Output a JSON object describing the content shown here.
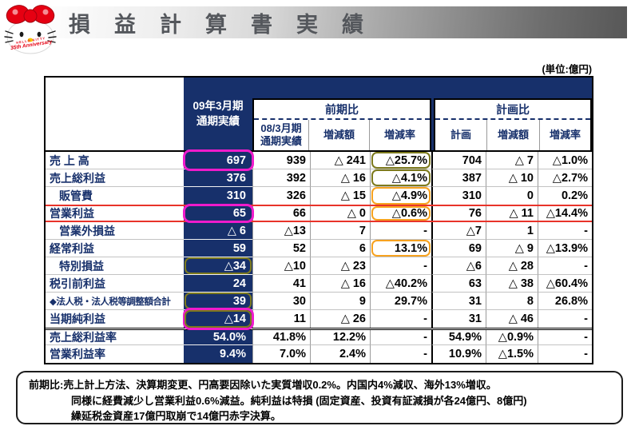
{
  "header": {
    "title": "損益計算書実績"
  },
  "logo": {
    "line1": "HELLO KITTY",
    "line2": "35th Anniversary"
  },
  "unit_label": "(単位:億円)",
  "table": {
    "columns": {
      "actual": [
        "09年3月期",
        "通期実績"
      ],
      "prev_group": "前期比",
      "plan_group": "計画比",
      "prev_sub": [
        [
          "08/3月期",
          "通期実績"
        ],
        [
          "増減額"
        ],
        [
          "増減率"
        ]
      ],
      "plan_sub": [
        [
          "計画"
        ],
        [
          "増減額"
        ],
        [
          "増減率"
        ]
      ]
    },
    "rows": [
      {
        "label": "売 上 高",
        "cells": [
          "697",
          "939",
          "△ 241",
          "△25.7%",
          "704",
          "△ 7",
          "△1.0%"
        ],
        "boxes": {
          "0": "magenta",
          "3": "olive"
        }
      },
      {
        "label": "売上総利益",
        "cells": [
          "376",
          "392",
          "△ 16",
          "△4.1%",
          "387",
          "△ 10",
          "△2.7%"
        ],
        "boxes": {
          "3": "olive"
        }
      },
      {
        "label": "販管費",
        "indent": true,
        "cells": [
          "310",
          "326",
          "△ 15",
          "△4.9%",
          "310",
          "0",
          "0.2%"
        ],
        "boxes": {
          "3": "orange"
        }
      },
      {
        "label": "営業利益",
        "red_frame": true,
        "cells": [
          "65",
          "66",
          "△ 0",
          "△0.6%",
          "76",
          "△ 11",
          "△14.4%"
        ],
        "boxes": {
          "0": "magenta",
          "3": "orange"
        }
      },
      {
        "label": "営業外損益",
        "indent": true,
        "cells": [
          "△ 6",
          "△13",
          "7",
          "-",
          "△7",
          "1",
          "-"
        ]
      },
      {
        "label": "経常利益",
        "cells": [
          "59",
          "52",
          "6",
          "13.1%",
          "69",
          "△ 9",
          "△13.9%"
        ],
        "boxes": {
          "3": "orange"
        }
      },
      {
        "label": "特別損益",
        "indent": true,
        "cells": [
          "△34",
          "△10",
          "△ 23",
          "-",
          "△6",
          "△ 28",
          "-"
        ],
        "boxes": {
          "0": "olive"
        }
      },
      {
        "label": "税引前利益",
        "cells": [
          "24",
          "41",
          "△ 16",
          "△40.2%",
          "63",
          "△ 38",
          "△60.4%"
        ]
      },
      {
        "label": "◆法人税・法人税等調整額合計",
        "small": true,
        "cells": [
          "39",
          "30",
          "9",
          "29.7%",
          "31",
          "8",
          "26.8%"
        ],
        "boxes": {
          "0": "olive"
        }
      },
      {
        "label": "当期純利益",
        "cells": [
          "△14",
          "11",
          "△ 26",
          "-",
          "31",
          "△ 46",
          "-"
        ],
        "boxes": {
          "0": "magenta-olive"
        }
      },
      {
        "label": "売上総利益率",
        "double_top": true,
        "cells": [
          "54.0%",
          "41.8%",
          "12.2%",
          "-",
          "54.9%",
          "△0.9%",
          "-"
        ]
      },
      {
        "label": "営業利益率",
        "cells": [
          "9.4%",
          "7.0%",
          "2.4%",
          "-",
          "10.9%",
          "△1.5%",
          "-"
        ]
      }
    ]
  },
  "note": {
    "prefix": "前期比:",
    "lines": [
      "売上計上方法、決算期変更、円高要因除いた実質増収0.2%。内国内4%減収、海外13%増収。",
      "同様に経費減少し営業利益0.6%減益。純利益は特損 (固定資産、投資有証減損が各24億円、8億円)",
      "繰延税金資産17億円取崩で14億円赤字決算。"
    ]
  },
  "colors": {
    "navy": "#17306b",
    "sanrio_red": "#e60012",
    "highlight_magenta": "#ef1bcb",
    "highlight_olive": "#7d7a1d",
    "highlight_orange": "#f7a21f",
    "red_rule": "#e8332a"
  }
}
